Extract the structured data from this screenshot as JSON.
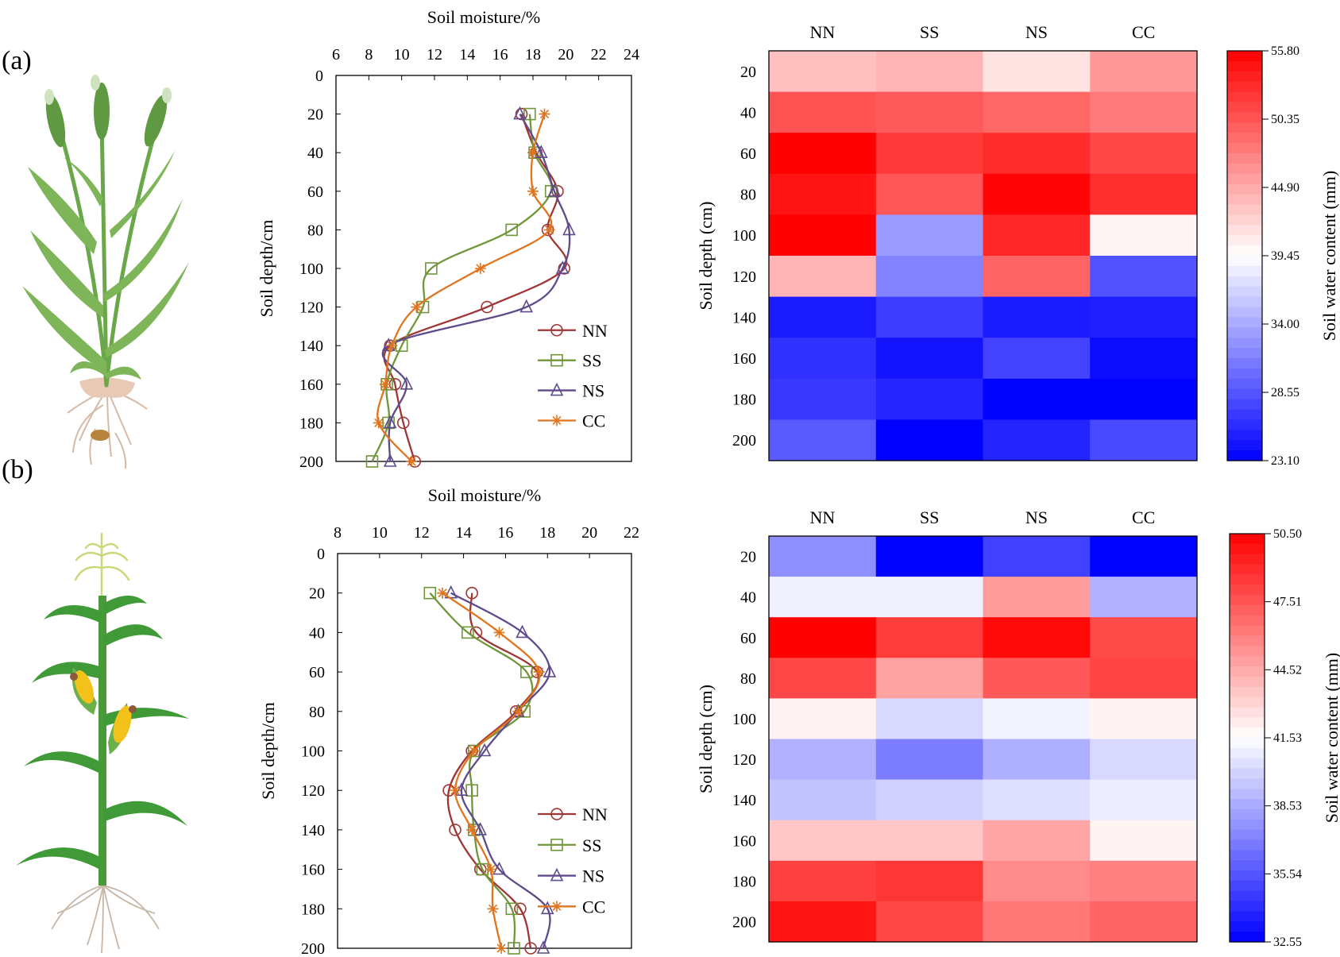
{
  "figure": {
    "panel_labels": [
      "(a)",
      "(b)"
    ],
    "plant_icons": [
      "wheat-plant-icon",
      "maize-plant-icon"
    ]
  },
  "chart_data": [
    {
      "id": "a-profile",
      "type": "line",
      "xlabel": "Soil moisture/%",
      "ylabel": "Soil depth/cm",
      "xlim": [
        6,
        24
      ],
      "xticks": [
        6,
        8,
        10,
        12,
        14,
        16,
        18,
        20,
        22,
        24
      ],
      "ylim": [
        0,
        200
      ],
      "yticks": [
        0,
        20,
        40,
        60,
        80,
        100,
        120,
        140,
        160,
        180,
        200
      ],
      "y_inverted": true,
      "x_axis_position": "top",
      "legend_position": "bottom-right",
      "depth": [
        20,
        40,
        60,
        80,
        100,
        120,
        140,
        160,
        180,
        200
      ],
      "series": [
        {
          "name": "NN",
          "color": "#A03535",
          "marker": "circle",
          "values": [
            17.3,
            18.2,
            19.5,
            18.9,
            19.9,
            15.2,
            9.3,
            9.6,
            10.1,
            10.8
          ]
        },
        {
          "name": "SS",
          "color": "#70963A",
          "marker": "square",
          "values": [
            17.8,
            18.1,
            19.1,
            16.7,
            11.8,
            11.3,
            10.0,
            9.1,
            9.2,
            8.2
          ]
        },
        {
          "name": "NS",
          "color": "#5E4A8C",
          "marker": "triangle",
          "values": [
            17.2,
            18.5,
            19.3,
            20.2,
            19.8,
            17.6,
            9.2,
            10.3,
            9.3,
            9.3
          ]
        },
        {
          "name": "CC",
          "color": "#E0751F",
          "marker": "star",
          "values": [
            18.7,
            18.0,
            18.0,
            19.0,
            14.8,
            10.9,
            9.4,
            9.0,
            8.6,
            10.6
          ]
        }
      ]
    },
    {
      "id": "a-heatmap",
      "type": "heatmap",
      "columns": [
        "NN",
        "SS",
        "NS",
        "CC"
      ],
      "rows": [
        20,
        40,
        60,
        80,
        100,
        120,
        140,
        160,
        180,
        200
      ],
      "ylabel": "Soil depth (cm)",
      "colorbar_label": "Soil water content (mm)",
      "vmin": 23.1,
      "vmid": 39.45,
      "vmax": 55.8,
      "colorbar_ticks": [
        "55.80",
        "50.35",
        "44.90",
        "39.45",
        "34.00",
        "28.55",
        "23.10"
      ],
      "values": [
        [
          43.5,
          44.2,
          41.3,
          46.0
        ],
        [
          50.5,
          50.0,
          49.2,
          47.9
        ],
        [
          55.8,
          52.2,
          53.0,
          51.2
        ],
        [
          54.6,
          50.2,
          55.5,
          52.8
        ],
        [
          55.8,
          33.0,
          53.3,
          40.1
        ],
        [
          44.2,
          31.5,
          49.4,
          28.3
        ],
        [
          24.8,
          27.0,
          24.8,
          25.0
        ],
        [
          26.2,
          24.3,
          27.4,
          23.8
        ],
        [
          26.7,
          25.5,
          23.2,
          23.2
        ],
        [
          28.9,
          23.1,
          25.4,
          27.8
        ]
      ]
    },
    {
      "id": "b-profile",
      "type": "line",
      "xlabel": "Soil moisture/%",
      "ylabel": "Soil depth/cm",
      "xlim": [
        8,
        22
      ],
      "xticks": [
        8,
        10,
        12,
        14,
        16,
        18,
        20,
        22
      ],
      "ylim": [
        0,
        200
      ],
      "yticks": [
        0,
        20,
        40,
        60,
        80,
        100,
        120,
        140,
        160,
        180,
        200
      ],
      "y_inverted": true,
      "x_axis_position": "top",
      "legend_position": "bottom-right",
      "depth": [
        20,
        40,
        60,
        80,
        100,
        120,
        140,
        160,
        180,
        200
      ],
      "series": [
        {
          "name": "NN",
          "color": "#A03535",
          "marker": "circle",
          "values": [
            14.4,
            14.6,
            17.5,
            16.5,
            14.4,
            13.3,
            13.6,
            14.8,
            16.7,
            17.2
          ]
        },
        {
          "name": "SS",
          "color": "#70963A",
          "marker": "square",
          "values": [
            12.4,
            14.2,
            17.0,
            16.9,
            14.5,
            14.4,
            14.5,
            14.9,
            16.3,
            16.4
          ]
        },
        {
          "name": "NS",
          "color": "#5E4A8C",
          "marker": "triangle",
          "values": [
            13.4,
            16.8,
            18.1,
            16.6,
            15.0,
            13.9,
            14.8,
            15.7,
            18.0,
            17.8
          ]
        },
        {
          "name": "CC",
          "color": "#E0751F",
          "marker": "star",
          "values": [
            13.0,
            15.7,
            17.6,
            16.6,
            14.5,
            13.6,
            14.4,
            15.3,
            15.4,
            15.8
          ]
        }
      ]
    },
    {
      "id": "b-heatmap",
      "type": "heatmap",
      "columns": [
        "NN",
        "SS",
        "NS",
        "CC"
      ],
      "rows": [
        20,
        40,
        60,
        80,
        100,
        120,
        140,
        160,
        180,
        200
      ],
      "ylabel": "Soil depth (cm)",
      "colorbar_label": "Soil water content (mm)",
      "vmin": 32.55,
      "vmid": 41.53,
      "vmax": 50.5,
      "colorbar_ticks": [
        "50.50",
        "47.51",
        "44.52",
        "41.53",
        "38.53",
        "35.54",
        "32.55"
      ],
      "values": [
        [
          37.6,
          32.6,
          34.8,
          32.6
        ],
        [
          41.0,
          41.0,
          45.0,
          38.8
        ],
        [
          50.5,
          48.4,
          50.2,
          47.9
        ],
        [
          48.0,
          44.8,
          47.4,
          48.1
        ],
        [
          42.0,
          40.2,
          41.1,
          41.9
        ],
        [
          38.8,
          36.9,
          38.7,
          40.2
        ],
        [
          39.4,
          39.9,
          40.4,
          40.9
        ],
        [
          43.5,
          43.5,
          44.7,
          41.9
        ],
        [
          48.2,
          48.6,
          45.6,
          46.0
        ],
        [
          49.8,
          48.0,
          46.3,
          47.0
        ]
      ]
    }
  ]
}
